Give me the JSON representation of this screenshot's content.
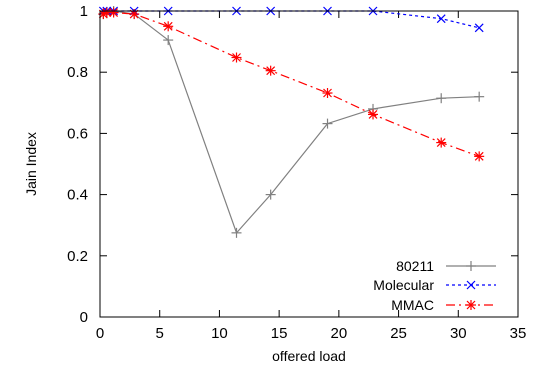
{
  "chart_data": {
    "type": "line",
    "xlabel": "offered load",
    "ylabel": "Jain Index",
    "xlim": [
      0,
      35
    ],
    "ylim": [
      0,
      1
    ],
    "xticks": [
      0,
      5,
      10,
      15,
      20,
      25,
      30,
      35
    ],
    "yticks": [
      0,
      0.2,
      0.4,
      0.6,
      0.8,
      1
    ],
    "yticklabels": [
      "0",
      "0.2",
      "0.4",
      "0.6",
      "0.8",
      "1"
    ],
    "legend_position": "bottom-right",
    "grid": false,
    "series": [
      {
        "name": "80211",
        "color": "#808080",
        "dash": "solid",
        "marker": "plus",
        "x": [
          0.28,
          0.57,
          1.14,
          2.86,
          5.71,
          11.43,
          14.29,
          19.05,
          22.86,
          28.57,
          31.75
        ],
        "y": [
          0.99,
          0.995,
          1.0,
          0.99,
          0.905,
          0.275,
          0.4,
          0.632,
          0.68,
          0.715,
          0.72
        ]
      },
      {
        "name": "Molecular",
        "color": "#0000ff",
        "dash": "dotted",
        "marker": "x",
        "x": [
          0.28,
          0.57,
          1.14,
          2.86,
          5.71,
          11.43,
          14.29,
          19.05,
          22.86,
          28.57,
          31.75
        ],
        "y": [
          1.0,
          1.0,
          1.0,
          1.0,
          1.0,
          1.0,
          1.0,
          1.0,
          1.0,
          0.975,
          0.945
        ]
      },
      {
        "name": "MMAC",
        "color": "#ff0000",
        "dash": "dashdot",
        "marker": "star",
        "x": [
          0.28,
          0.57,
          1.14,
          2.86,
          5.71,
          11.43,
          14.29,
          19.05,
          22.86,
          28.57,
          31.75
        ],
        "y": [
          0.99,
          0.995,
          0.995,
          0.99,
          0.95,
          0.848,
          0.805,
          0.732,
          0.662,
          0.57,
          0.525
        ]
      }
    ]
  }
}
